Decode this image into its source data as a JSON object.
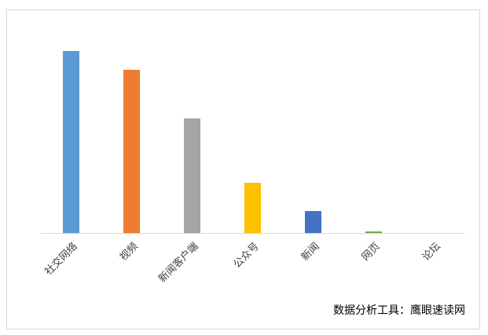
{
  "chart_data": {
    "type": "bar",
    "categories": [
      "社交网络",
      "视频",
      "新闻客户端",
      "公众号",
      "新闻",
      "网页",
      "论坛"
    ],
    "values": [
      232,
      208,
      146,
      64,
      28,
      2,
      0
    ],
    "colors": [
      "#5b9bd5",
      "#ed7d31",
      "#a5a5a5",
      "#ffc000",
      "#4472c4",
      "#70ad47",
      "#264478"
    ],
    "ylim": [
      0,
      250
    ],
    "annotation": "数据分析工具：鹰眼速读网"
  }
}
